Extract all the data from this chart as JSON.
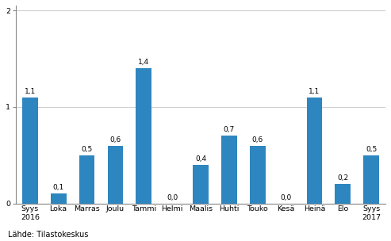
{
  "categories": [
    "Syys\n2016",
    "Loka",
    "Marras",
    "Joulu",
    "Tammi",
    "Helmi",
    "Maalis",
    "Huhti",
    "Touko",
    "Kesä",
    "Heinä",
    "Elo",
    "Syys\n2017"
  ],
  "values": [
    1.1,
    0.1,
    0.5,
    0.6,
    1.4,
    0.0,
    0.4,
    0.7,
    0.6,
    0.0,
    1.1,
    0.2,
    0.5
  ],
  "bar_color": "#2e86c0",
  "ylim": [
    0,
    2.05
  ],
  "yticks": [
    0,
    1,
    2
  ],
  "source_text": "Lähde: Tilastokeskus",
  "bar_width": 0.55,
  "value_label_fontsize": 6.5,
  "tick_fontsize": 6.8,
  "source_fontsize": 7.0,
  "grid_color": "#d0d0d0",
  "background_color": "#ffffff"
}
